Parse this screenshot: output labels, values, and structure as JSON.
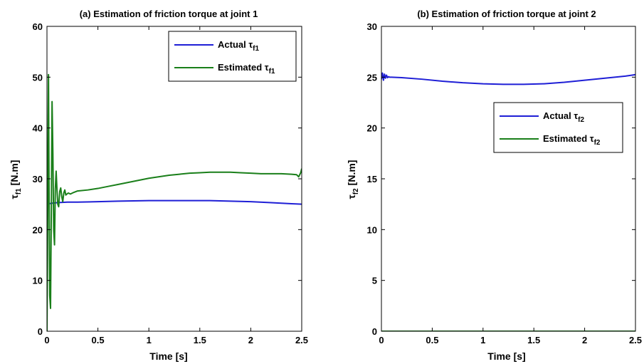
{
  "chart_data": [
    {
      "type": "line",
      "title": "(a) Estimation of friction torque at joint 1",
      "xlabel": "Time [s]",
      "ylabel": {
        "symbol": "τ",
        "sub": "f1",
        "unit": "[N.m]"
      },
      "xlim": [
        0,
        2.5
      ],
      "ylim": [
        0,
        60
      ],
      "xticks": [
        "0",
        "0.5",
        "1",
        "1.5",
        "2",
        "2.5"
      ],
      "yticks": [
        "0",
        "10",
        "20",
        "30",
        "40",
        "50",
        "60"
      ],
      "legend_position": "top-right",
      "series": [
        {
          "name": {
            "prefix": "Actual ",
            "symbol": "τ",
            "sub": "f1"
          },
          "color": "#1f1fd6",
          "x": [
            0,
            0.02,
            0.05,
            0.1,
            0.2,
            0.3,
            0.5,
            0.7,
            1.0,
            1.3,
            1.6,
            1.8,
            2.0,
            2.2,
            2.4,
            2.5
          ],
          "y": [
            25.0,
            25.1,
            25.2,
            25.3,
            25.4,
            25.4,
            25.5,
            25.6,
            25.7,
            25.7,
            25.7,
            25.6,
            25.5,
            25.3,
            25.1,
            25.0
          ]
        },
        {
          "name": {
            "prefix": "Estimated ",
            "symbol": "τ",
            "sub": "f1"
          },
          "color": "#1a7f1a",
          "x": [
            0,
            0.005,
            0.01,
            0.015,
            0.02,
            0.027,
            0.035,
            0.043,
            0.05,
            0.058,
            0.066,
            0.074,
            0.082,
            0.09,
            0.098,
            0.106,
            0.115,
            0.125,
            0.135,
            0.145,
            0.155,
            0.165,
            0.175,
            0.185,
            0.195,
            0.21,
            0.23,
            0.26,
            0.3,
            0.4,
            0.5,
            0.6,
            0.7,
            0.8,
            0.9,
            1.0,
            1.1,
            1.2,
            1.3,
            1.4,
            1.5,
            1.6,
            1.7,
            1.8,
            1.9,
            2.0,
            2.1,
            2.2,
            2.3,
            2.4,
            2.45,
            2.47,
            2.49,
            2.5
          ],
          "y": [
            0,
            15,
            35,
            50.5,
            30,
            7,
            4.5,
            25,
            45.2,
            35,
            20,
            17,
            28,
            31.5,
            28,
            25,
            24.5,
            27.5,
            28.2,
            26.5,
            25.5,
            27.2,
            27.8,
            26.8,
            27.0,
            27.2,
            27.0,
            27.3,
            27.6,
            27.8,
            28.1,
            28.5,
            28.9,
            29.3,
            29.7,
            30.1,
            30.4,
            30.7,
            30.9,
            31.1,
            31.2,
            31.3,
            31.3,
            31.3,
            31.2,
            31.1,
            31.0,
            31.0,
            31.0,
            30.9,
            30.8,
            30.4,
            31.2,
            32.0
          ]
        }
      ]
    },
    {
      "type": "line",
      "title": "(b) Estimation of friction torque at joint 2",
      "xlabel": "Time [s]",
      "ylabel": {
        "symbol": "τ",
        "sub": "f2",
        "unit": "[N.m]"
      },
      "xlim": [
        0,
        2.5
      ],
      "ylim": [
        0,
        30
      ],
      "xticks": [
        "0",
        "0.5",
        "1",
        "1.5",
        "2",
        "2.5"
      ],
      "yticks": [
        "0",
        "5",
        "10",
        "15",
        "20",
        "25",
        "30"
      ],
      "legend_position": "right",
      "series": [
        {
          "name": {
            "prefix": "Actual ",
            "symbol": "τ",
            "sub": "f2"
          },
          "color": "#1f1fd6",
          "x": [
            0,
            0.01,
            0.02,
            0.03,
            0.04,
            0.05,
            0.06,
            0.07,
            0.08,
            0.1,
            0.2,
            0.4,
            0.6,
            0.8,
            1.0,
            1.2,
            1.4,
            1.6,
            1.8,
            2.0,
            2.2,
            2.4,
            2.5
          ],
          "y": [
            24.8,
            25.4,
            24.7,
            25.3,
            24.9,
            25.2,
            24.95,
            25.05,
            25.0,
            25.0,
            24.95,
            24.8,
            24.6,
            24.45,
            24.35,
            24.3,
            24.3,
            24.35,
            24.5,
            24.7,
            24.9,
            25.1,
            25.25
          ]
        },
        {
          "name": {
            "prefix": "Estimated ",
            "symbol": "τ",
            "sub": "f2"
          },
          "color": "#1a7f1a",
          "x": [
            0,
            2.5
          ],
          "y": [
            0,
            0
          ]
        }
      ]
    }
  ]
}
